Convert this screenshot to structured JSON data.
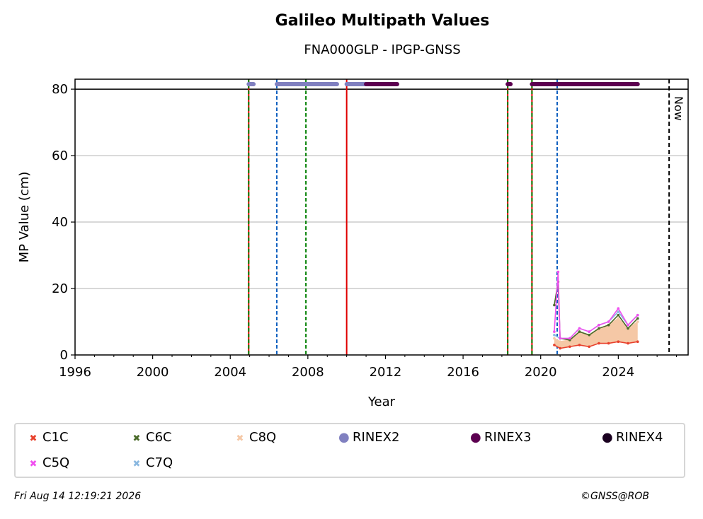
{
  "chart_data": {
    "type": "scatter",
    "title": "Galileo Multipath Values",
    "subtitle": "FNA000GLP - IPGP-GNSS",
    "xlabel": "Year",
    "ylabel": "MP Value (cm)",
    "xlim": [
      1996,
      2027.6
    ],
    "ylim": [
      0,
      83
    ],
    "xticks": [
      1996,
      2000,
      2004,
      2008,
      2012,
      2016,
      2020,
      2024
    ],
    "yticks": [
      0,
      20,
      40,
      60,
      80
    ],
    "grid": "y",
    "now_label": "Now",
    "now_year": 2026.62,
    "reference_line_y": 80,
    "events": [
      {
        "year": 2004.95,
        "kind": "red-green"
      },
      {
        "year": 2006.4,
        "kind": "blue-dashed"
      },
      {
        "year": 2007.9,
        "kind": "green-dashed"
      },
      {
        "year": 2010.0,
        "kind": "red-solid"
      },
      {
        "year": 2018.3,
        "kind": "red-green"
      },
      {
        "year": 2019.55,
        "kind": "red-green"
      },
      {
        "year": 2020.85,
        "kind": "blue-dashed"
      }
    ],
    "rinex_bands": [
      {
        "name": "RINEX2",
        "start": 2004.95,
        "end": 2005.2,
        "y": 81.5
      },
      {
        "name": "RINEX2",
        "start": 2006.4,
        "end": 2009.5,
        "y": 81.5
      },
      {
        "name": "RINEX2",
        "start": 2010.0,
        "end": 2011.0,
        "y": 81.5
      },
      {
        "name": "RINEX3",
        "start": 2011.0,
        "end": 2012.6,
        "y": 81.5
      },
      {
        "name": "RINEX3",
        "start": 2018.3,
        "end": 2018.35,
        "y": 81.5
      },
      {
        "name": "RINEX3",
        "start": 2019.55,
        "end": 2025.0,
        "y": 81.5
      }
    ],
    "series": [
      {
        "name": "C1C",
        "x": [
          2020.7,
          2021.0,
          2021.5,
          2022.0,
          2022.5,
          2023.0,
          2023.5,
          2024.0,
          2024.5,
          2025.0
        ],
        "y": [
          3.0,
          2.0,
          2.5,
          3.0,
          2.5,
          3.5,
          3.5,
          4.0,
          3.5,
          4.0
        ]
      },
      {
        "name": "C5Q",
        "x": [
          2020.7,
          2020.9,
          2021.0,
          2021.5,
          2022.0,
          2022.5,
          2023.0,
          2023.5,
          2024.0,
          2024.5,
          2025.0
        ],
        "y": [
          7.0,
          25.0,
          5.0,
          5.0,
          8.0,
          7.0,
          9.0,
          10.0,
          14.0,
          9.0,
          12.0
        ]
      },
      {
        "name": "C6C",
        "x": [
          2020.7,
          2020.9,
          2021.0,
          2021.5,
          2022.0,
          2022.5,
          2023.0,
          2023.5,
          2024.0,
          2024.5,
          2025.0
        ],
        "y": [
          15.0,
          22.0,
          5.0,
          4.5,
          7.0,
          6.0,
          8.0,
          9.0,
          12.0,
          8.0,
          11.0
        ]
      },
      {
        "name": "C7Q",
        "x": [
          2020.7,
          2021.0,
          2021.5,
          2022.0,
          2022.5,
          2023.0,
          2023.5,
          2024.0,
          2024.5,
          2025.0
        ],
        "y": [
          6.0,
          5.0,
          5.0,
          8.0,
          7.0,
          9.0,
          10.0,
          13.0,
          9.0,
          12.0
        ]
      },
      {
        "name": "C8Q",
        "x": [
          2020.7,
          2021.0,
          2021.5,
          2022.0,
          2022.5,
          2023.0,
          2023.5,
          2024.0,
          2024.5,
          2025.0
        ],
        "y": [
          5.0,
          4.0,
          4.5,
          7.0,
          6.0,
          8.0,
          9.0,
          11.0,
          8.0,
          10.0
        ]
      }
    ],
    "legend": [
      {
        "label": "C1C",
        "color": "#e8412c",
        "marker": "x"
      },
      {
        "label": "C6C",
        "color": "#4a6a2a",
        "marker": "x"
      },
      {
        "label": "C8Q",
        "color": "#f5c8a6",
        "marker": "x"
      },
      {
        "label": "RINEX2",
        "color": "#8080c0",
        "marker": "dot"
      },
      {
        "label": "RINEX3",
        "color": "#5c0050",
        "marker": "dot"
      },
      {
        "label": "RINEX4",
        "color": "#1a0020",
        "marker": "dot"
      },
      {
        "label": "C5Q",
        "color": "#f050f0",
        "marker": "x"
      },
      {
        "label": "C7Q",
        "color": "#8ab8e0",
        "marker": "x"
      }
    ]
  },
  "footer": {
    "timestamp": "Fri Aug 14 12:19:21 2026",
    "copyright": "©GNSS@ROB"
  }
}
